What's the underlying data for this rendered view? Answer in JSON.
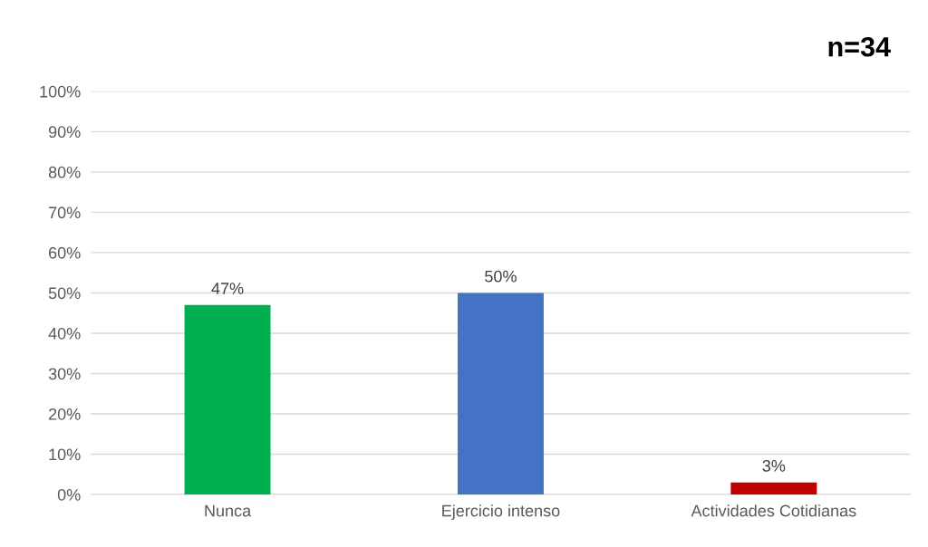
{
  "chart_data": {
    "type": "bar",
    "categories": [
      "Nunca",
      "Ejercicio intenso",
      "Actividades Cotidianas"
    ],
    "values": [
      47,
      50,
      3
    ],
    "colors": [
      "#00b050",
      "#4472c4",
      "#c00000"
    ],
    "value_labels": [
      "47%",
      "50%",
      "3%"
    ],
    "ylim": [
      0,
      100
    ],
    "yticks": [
      {
        "value": 0,
        "label": "0%"
      },
      {
        "value": 10,
        "label": "10%"
      },
      {
        "value": 20,
        "label": "20%"
      },
      {
        "value": 30,
        "label": "30%"
      },
      {
        "value": 40,
        "label": "40%"
      },
      {
        "value": 50,
        "label": "50%"
      },
      {
        "value": 60,
        "label": "60%"
      },
      {
        "value": 70,
        "label": "70%"
      },
      {
        "value": 80,
        "label": "80%"
      },
      {
        "value": 90,
        "label": "90%"
      },
      {
        "value": 100,
        "label": "100%"
      }
    ],
    "grid": "y",
    "annotations": [
      "n=34"
    ]
  }
}
